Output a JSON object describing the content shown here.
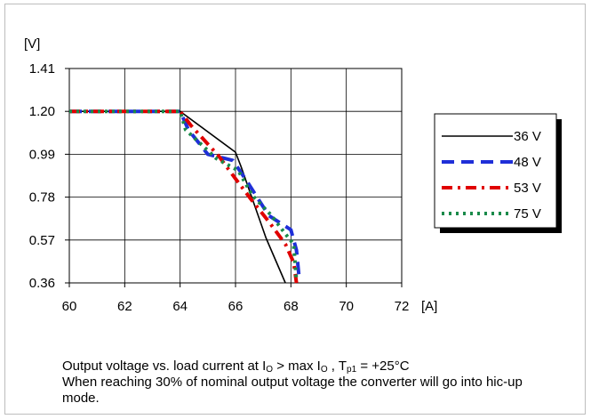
{
  "chart_data": {
    "type": "line",
    "y_unit": "[V]",
    "x_unit": "[A]",
    "xlim": [
      60,
      72
    ],
    "ylim": [
      0.36,
      1.41
    ],
    "x_ticks": [
      "60",
      "62",
      "64",
      "66",
      "68",
      "70",
      "72"
    ],
    "y_ticks": [
      "1.41",
      "1.20",
      "0.99",
      "0.78",
      "0.57",
      "0.36"
    ],
    "grid": true,
    "legend_position": "right",
    "series": [
      {
        "name": "36 V",
        "color": "#000000",
        "style": "solid",
        "points": [
          [
            60,
            1.2
          ],
          [
            64,
            1.2
          ],
          [
            66,
            1.0
          ],
          [
            66.2,
            0.93
          ],
          [
            67.1,
            0.58
          ],
          [
            67.8,
            0.36
          ]
        ]
      },
      {
        "name": "48 V",
        "color": "#1f2fd8",
        "style": "dash",
        "points": [
          [
            60,
            1.2
          ],
          [
            64,
            1.2
          ],
          [
            64.3,
            1.11
          ],
          [
            65.0,
            0.99
          ],
          [
            65.9,
            0.96
          ],
          [
            66.4,
            0.86
          ],
          [
            67.2,
            0.69
          ],
          [
            68.0,
            0.62
          ],
          [
            68.2,
            0.52
          ],
          [
            68.3,
            0.38
          ]
        ]
      },
      {
        "name": "53 V",
        "color": "#e00000",
        "style": "dashdot",
        "points": [
          [
            60,
            1.2
          ],
          [
            64,
            1.2
          ],
          [
            64.4,
            1.13
          ],
          [
            65.4,
            0.98
          ],
          [
            66.0,
            0.87
          ],
          [
            66.5,
            0.78
          ],
          [
            67.2,
            0.66
          ],
          [
            67.8,
            0.55
          ],
          [
            68.1,
            0.46
          ],
          [
            68.2,
            0.36
          ]
        ]
      },
      {
        "name": "75 V",
        "color": "#1a8a4a",
        "style": "dot",
        "points": [
          [
            60,
            1.2
          ],
          [
            64,
            1.2
          ],
          [
            64.2,
            1.11
          ],
          [
            65.3,
            0.97
          ],
          [
            66.1,
            0.91
          ],
          [
            66.6,
            0.79
          ],
          [
            67.3,
            0.69
          ],
          [
            67.8,
            0.6
          ],
          [
            68.1,
            0.55
          ],
          [
            68.2,
            0.37
          ]
        ]
      }
    ]
  },
  "caption": {
    "line1_pre": "Output voltage vs. load current at I",
    "line1_sub1": "O",
    "line1_mid": " > max I",
    "line1_sub2": "O",
    "line1_mid2": " , T",
    "line1_sub3": "p1",
    "line1_post": " = +25°C",
    "line2": "When reaching 30% of nominal output voltage the converter will go into hic-up mode."
  }
}
